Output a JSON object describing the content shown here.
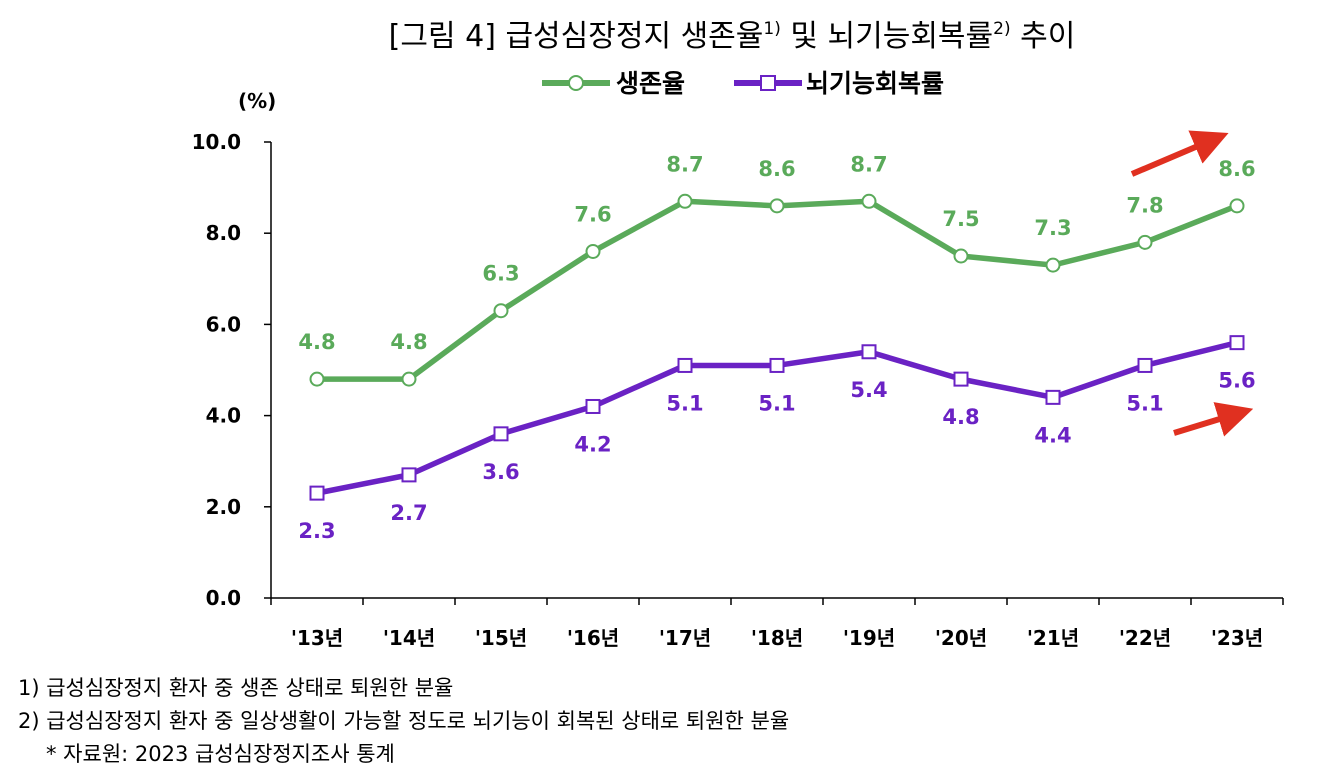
{
  "chart_data": {
    "type": "line",
    "title": "[그림 4] 급성심장정지 생존율",
    "title_sup1": "1)",
    "title_mid": " 및 뇌기능회복률",
    "title_sup2": "2)",
    "title_end": " 추이",
    "ylabel": "(%)",
    "ylim": [
      0,
      10
    ],
    "yticks": [
      "0.0",
      "2.0",
      "4.0",
      "6.0",
      "8.0",
      "10.0"
    ],
    "categories": [
      "'13년",
      "'14년",
      "'15년",
      "'16년",
      "'17년",
      "'18년",
      "'19년",
      "'20년",
      "'21년",
      "'22년",
      "'23년"
    ],
    "series": [
      {
        "name": "생존율",
        "color": "#5aaa5a",
        "marker": "circle",
        "values": [
          4.8,
          4.8,
          6.3,
          7.6,
          8.7,
          8.6,
          8.7,
          7.5,
          7.3,
          7.8,
          8.6
        ],
        "labels": [
          "4.8",
          "4.8",
          "6.3",
          "7.6",
          "8.7",
          "8.6",
          "8.7",
          "7.5",
          "7.3",
          "7.8",
          "8.6"
        ]
      },
      {
        "name": "뇌기능회복률",
        "color": "#6a22c4",
        "marker": "square",
        "values": [
          2.3,
          2.7,
          3.6,
          4.2,
          5.1,
          5.1,
          5.4,
          4.8,
          4.4,
          5.1,
          5.6
        ],
        "labels": [
          "2.3",
          "2.7",
          "3.6",
          "4.2",
          "5.1",
          "5.1",
          "5.4",
          "4.8",
          "4.4",
          "5.1",
          "5.6"
        ]
      }
    ],
    "annotations": [
      {
        "type": "arrow",
        "color": "#e03020",
        "meaning": "upward trend of 생존율"
      },
      {
        "type": "arrow",
        "color": "#e03020",
        "meaning": "upward trend of 뇌기능회복률"
      }
    ],
    "legend_position": "top-center",
    "grid": false
  },
  "footnotes": {
    "note1": "1) 급성심장정지 환자 중 생존 상태로 퇴원한 분율",
    "note2": "2) 급성심장정지 환자 중 일상생활이 가능할 정도로 뇌기능이 회복된 상태로 퇴원한 분율",
    "source": "* 자료원: 2023 급성심장정지조사 통계"
  }
}
